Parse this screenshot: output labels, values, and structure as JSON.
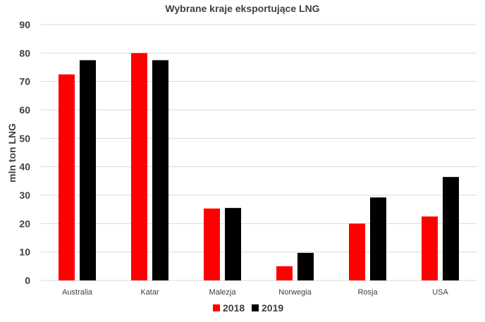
{
  "chart_data": {
    "type": "bar",
    "title": "Wybrane kraje eksportujące LNG",
    "xlabel": "",
    "ylabel": "mln ton LNG",
    "ylim": [
      0,
      90
    ],
    "yticks": [
      0,
      10,
      20,
      30,
      40,
      50,
      60,
      70,
      80,
      90
    ],
    "grid": true,
    "legend_position": "bottom",
    "categories": [
      "Australia",
      "Katar",
      "Malezja",
      "Norwegia",
      "Rosja",
      "USA"
    ],
    "series": [
      {
        "name": "2018",
        "color": "#ff0000",
        "values": [
          72.5,
          80,
          25.3,
          5,
          20,
          22.5
        ]
      },
      {
        "name": "2019",
        "color": "#000000",
        "values": [
          77.5,
          77.5,
          25.5,
          9.7,
          29.2,
          36.4
        ]
      }
    ]
  }
}
